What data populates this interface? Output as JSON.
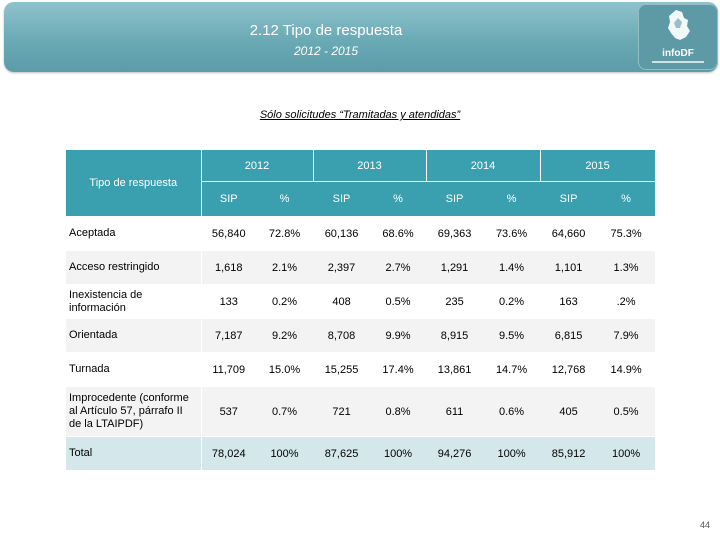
{
  "header": {
    "title": "2.12 Tipo de respuesta",
    "subtitle": "2012 - 2015",
    "logo_text": "infoDF"
  },
  "caption": "Sólo solicitudes “Tramitadas y atendidas”",
  "table": {
    "row_header": "Tipo de respuesta",
    "years": [
      "2012",
      "2013",
      "2014",
      "2015"
    ],
    "units": [
      "SIP",
      "%",
      "SIP",
      "%",
      "SIP",
      "%",
      "SIP",
      "%"
    ],
    "rows": [
      {
        "label": "Aceptada",
        "values": [
          "56,840",
          "72.8%",
          "60,136",
          "68.6%",
          "69,363",
          "73.6%",
          "64,660",
          "75.3%"
        ]
      },
      {
        "label": "Acceso restringido",
        "values": [
          "1,618",
          "2.1%",
          "2,397",
          "2.7%",
          "1,291",
          "1.4%",
          "1,101",
          "1.3%"
        ]
      },
      {
        "label": "Inexistencia de información",
        "values": [
          "133",
          "0.2%",
          "408",
          "0.5%",
          "235",
          "0.2%",
          "163",
          ".2%"
        ]
      },
      {
        "label": "Orientada",
        "values": [
          "7,187",
          "9.2%",
          "8,708",
          "9.9%",
          "8,915",
          "9.5%",
          "6,815",
          "7.9%"
        ]
      },
      {
        "label": "Turnada",
        "values": [
          "11,709",
          "15.0%",
          "15,255",
          "17.4%",
          "13,861",
          "14.7%",
          "12,768",
          "14.9%"
        ]
      },
      {
        "label": "Improcedente (conforme al Artículo 57, párrafo II de la LTAIPDF)",
        "values": [
          "537",
          "0.7%",
          "721",
          "0.8%",
          "611",
          "0.6%",
          "405",
          "0.5%"
        ]
      },
      {
        "label": "Total",
        "values": [
          "78,024",
          "100%",
          "87,625",
          "100%",
          "94,276",
          "100%",
          "85,912",
          "100%"
        ]
      }
    ]
  },
  "page_number": "44"
}
